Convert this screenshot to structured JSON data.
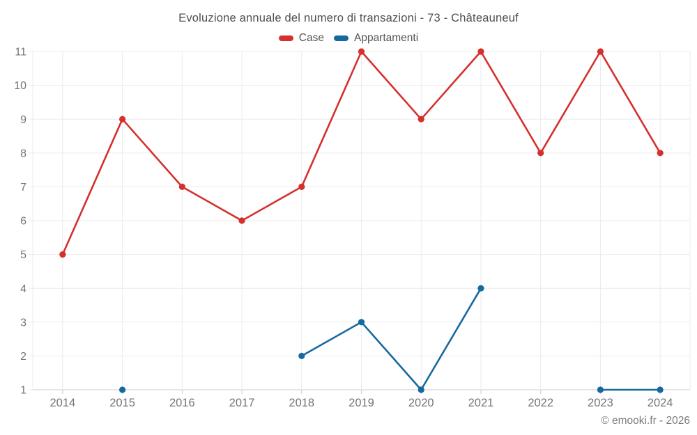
{
  "title": "Evoluzione annuale del numero di transazioni - 73 - Châteauneuf",
  "copyright": "© emooki.fr - 2026",
  "colors": {
    "case_red": "#d4312e",
    "appartamenti_blue": "#16699f",
    "grid": "#ebebeb",
    "axis_line": "#cccccc",
    "tick_label": "#757575",
    "title_text": "#4e4e4e",
    "legend_text": "#565656",
    "copyright_text": "#7d7d7d"
  },
  "chart_data": {
    "type": "line",
    "title": "Evoluzione annuale del numero di transazioni - 73 - Châteauneuf",
    "categories": [
      "2014",
      "2015",
      "2016",
      "2017",
      "2018",
      "2019",
      "2020",
      "2021",
      "2022",
      "2023",
      "2024"
    ],
    "series": [
      {
        "name": "Case",
        "color": "#d4312e",
        "values": [
          5,
          9,
          7,
          6,
          7,
          11,
          9,
          11,
          8,
          11,
          8
        ]
      },
      {
        "name": "Appartamenti",
        "color": "#16699f",
        "values": [
          null,
          1,
          null,
          null,
          2,
          3,
          1,
          4,
          null,
          1,
          1
        ]
      }
    ],
    "xlabel": "",
    "ylabel": "",
    "ylim": [
      1,
      11
    ],
    "y_ticks": [
      1,
      2,
      3,
      4,
      5,
      6,
      7,
      8,
      9,
      10,
      11
    ],
    "grid": true,
    "legend_position": "top",
    "markers": true
  }
}
